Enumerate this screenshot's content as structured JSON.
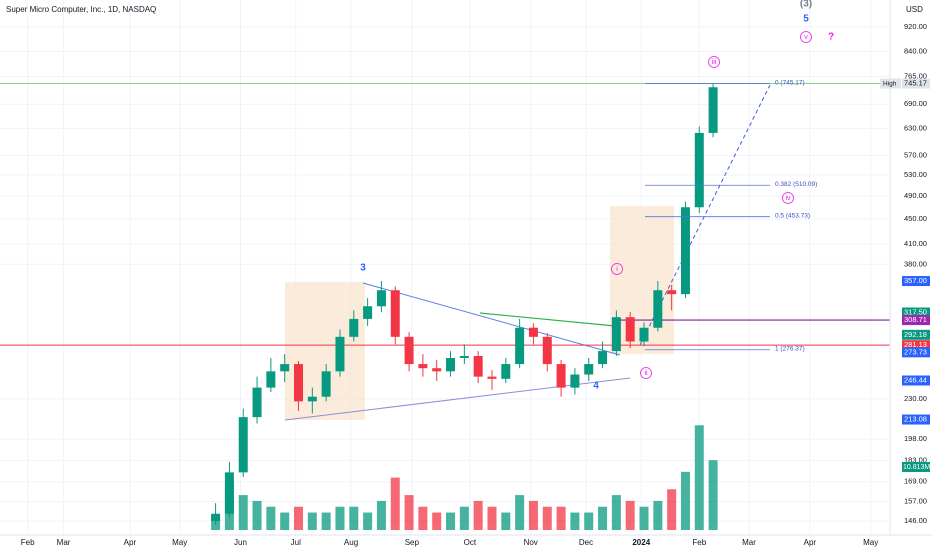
{
  "chart_data": {
    "type": "candlestick",
    "title": "Super Micro Computer, Inc., 1D, NASDAQ",
    "currency": "USD",
    "log_scale": true,
    "grid": true,
    "xlim": [
      0,
      322
    ],
    "xticks": [
      {
        "value": 10,
        "label": "Feb"
      },
      {
        "value": 23,
        "label": "Mar"
      },
      {
        "value": 47,
        "label": "Apr"
      },
      {
        "value": 65,
        "label": "May"
      },
      {
        "value": 87,
        "label": "Jun"
      },
      {
        "value": 107,
        "label": "Jul"
      },
      {
        "value": 127,
        "label": "Aug"
      },
      {
        "value": 149,
        "label": "Sep"
      },
      {
        "value": 170,
        "label": "Oct"
      },
      {
        "value": 192,
        "label": "Nov"
      },
      {
        "value": 212,
        "label": "Dec"
      },
      {
        "value": 232,
        "label": "2024"
      },
      {
        "value": 253,
        "label": "Feb"
      },
      {
        "value": 271,
        "label": "Mar"
      },
      {
        "value": 293,
        "label": "Apr"
      },
      {
        "value": 315,
        "label": "May"
      }
    ],
    "ylim": [
      146,
      920
    ],
    "yticks": [
      {
        "value": 146,
        "label": "146.00"
      },
      {
        "value": 157,
        "label": "157.00"
      },
      {
        "value": 169,
        "label": "169.00"
      },
      {
        "value": 183,
        "label": "183.00"
      },
      {
        "value": 198,
        "label": "198.00"
      },
      {
        "value": 230,
        "label": "230.00"
      },
      {
        "value": 380,
        "label": "380.00"
      },
      {
        "value": 410,
        "label": "410.00"
      },
      {
        "value": 450,
        "label": "450.00"
      },
      {
        "value": 490,
        "label": "490.00"
      },
      {
        "value": 530,
        "label": "530.00"
      },
      {
        "value": 570,
        "label": "570.00"
      },
      {
        "value": 630,
        "label": "630.00"
      },
      {
        "value": 690,
        "label": "690.00"
      },
      {
        "value": 765,
        "label": "765.00"
      },
      {
        "value": 840,
        "label": "840.00"
      },
      {
        "value": 920,
        "label": "920.00"
      }
    ],
    "up_color": "#089981",
    "down_color": "#f23645",
    "candles": {
      "x": [
        78,
        83,
        88,
        93,
        98,
        103,
        108,
        113,
        118,
        123,
        128,
        133,
        138,
        143,
        148,
        153,
        158,
        163,
        168,
        173,
        178,
        183,
        188,
        193,
        198,
        203,
        208,
        213,
        218,
        223,
        228,
        233,
        238,
        243,
        248,
        253,
        258
      ],
      "open": [
        146,
        150,
        175,
        215,
        240,
        255,
        262,
        228,
        232,
        255,
        290,
        310,
        325,
        345,
        290,
        262,
        258,
        255,
        268,
        270,
        250,
        248,
        262,
        300,
        290,
        262,
        240,
        252,
        262,
        275,
        312,
        285,
        300,
        345,
        340,
        470,
        620
      ],
      "high": [
        156,
        182,
        222,
        250,
        268,
        272,
        265,
        240,
        262,
        298,
        320,
        335,
        357,
        350,
        295,
        272,
        266,
        275,
        282,
        275,
        256,
        268,
        310,
        305,
        294,
        266,
        258,
        268,
        285,
        320,
        318,
        306,
        357,
        352,
        480,
        635,
        745.17
      ],
      "low": [
        144,
        148,
        172,
        210,
        236,
        245,
        220,
        218,
        228,
        250,
        285,
        302,
        318,
        282,
        255,
        250,
        246,
        250,
        262,
        244,
        238,
        244,
        258,
        282,
        255,
        232,
        234,
        246,
        258,
        270,
        278,
        280,
        296,
        320,
        335,
        460,
        610
      ],
      "close": [
        150,
        175,
        215,
        240,
        255,
        262,
        228,
        232,
        255,
        290,
        310,
        325,
        345,
        290,
        262,
        258,
        255,
        268,
        270,
        250,
        248,
        262,
        300,
        290,
        262,
        240,
        252,
        262,
        275,
        312,
        285,
        300,
        345,
        340,
        470,
        620,
        735
      ]
    },
    "volume": {
      "vlim": [
        0,
        22
      ],
      "values": [
        2,
        8,
        6,
        5,
        4,
        3,
        4,
        3,
        3,
        4,
        4,
        3,
        5,
        9,
        6,
        4,
        3,
        3,
        4,
        5,
        4,
        3,
        6,
        5,
        4,
        4,
        3,
        3,
        4,
        6,
        5,
        4,
        5,
        7,
        10,
        18,
        12
      ]
    },
    "price_labels": [
      {
        "value": 745.17,
        "label": "745.17",
        "color": "#e0e3eb",
        "tag": "High"
      },
      {
        "value": 357,
        "label": "357.00",
        "color": "#2962ff"
      },
      {
        "value": 317.5,
        "label": "317.50",
        "color": "#089981"
      },
      {
        "value": 308.71,
        "label": "308.71",
        "color": "#9c27b0"
      },
      {
        "value": 292.18,
        "label": "292.18",
        "color": "#089981"
      },
      {
        "value": 281.13,
        "label": "281.13",
        "color": "#f23645"
      },
      {
        "value": 273.73,
        "label": "273.73",
        "color": "#2962ff"
      },
      {
        "value": 246.44,
        "label": "246.44",
        "color": "#2962ff"
      },
      {
        "value": 213.08,
        "label": "213.08",
        "color": "#2962ff"
      }
    ],
    "volume_label": "10.813M",
    "fib_levels": [
      {
        "value": 745.17,
        "label": "0 (745.17)"
      },
      {
        "value": 510.09,
        "label": "0.382 (510.09)"
      },
      {
        "value": 453.73,
        "label": "0.5 (453.73)"
      },
      {
        "value": 276.37,
        "label": "1 (276.37)"
      }
    ],
    "annotations": [
      {
        "text": "(3)",
        "color": "#787b86"
      },
      {
        "text": "5",
        "color": "#2962ff"
      },
      {
        "text": "v",
        "color": "#e91ee0",
        "circled": true
      },
      {
        "text": "?",
        "color": "#e91ee0"
      },
      {
        "text": "iii",
        "color": "#e91ee0",
        "circled": true
      },
      {
        "text": "3",
        "color": "#2962ff"
      },
      {
        "text": "i",
        "color": "#e91ee0",
        "circled": true
      },
      {
        "text": "iv",
        "color": "#e91ee0",
        "circled": true
      },
      {
        "text": "ii",
        "color": "#e91ee0",
        "circled": true
      },
      {
        "text": "4",
        "color": "#2962ff"
      }
    ]
  }
}
